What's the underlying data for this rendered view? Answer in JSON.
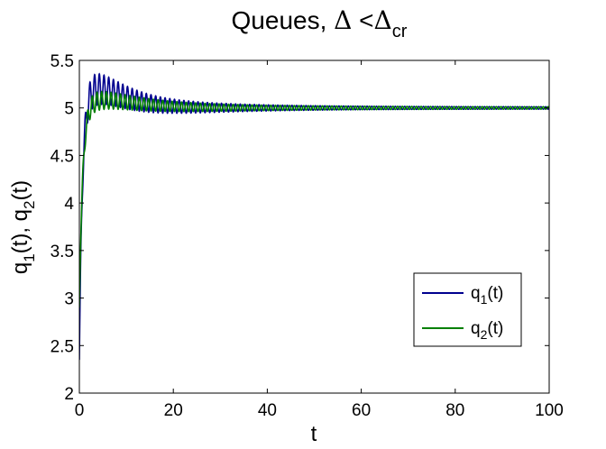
{
  "chart_data": {
    "type": "line",
    "title": {
      "main": "Queues, ",
      "delta": "Δ",
      "lt": " <",
      "delta2": "Δ",
      "sub": "cr"
    },
    "xlabel": "t",
    "ylabel": {
      "q": "q",
      "sub1": "1",
      "mid": "(t), q",
      "sub2": "2",
      "end": "(t)"
    },
    "xlim": [
      0,
      100
    ],
    "ylim": [
      2,
      5.5
    ],
    "xticks": [
      0,
      20,
      40,
      60,
      80,
      100
    ],
    "yticks": [
      2,
      2.5,
      3,
      3.5,
      4,
      4.5,
      5,
      5.5
    ],
    "xtick_labels": [
      "0",
      "20",
      "40",
      "60",
      "80",
      "100"
    ],
    "ytick_labels": [
      "2",
      "2.5",
      "3",
      "3.5",
      "4",
      "4.5",
      "5",
      "5.5"
    ],
    "grid": false,
    "legend_position": "bottom-right",
    "series": [
      {
        "name": {
          "q": "q",
          "sub": "1",
          "end": "(t)"
        },
        "color": "#00008f",
        "start": 2.35,
        "rise_tau": 0.6,
        "overshoot": 0.2,
        "peak_t": 4,
        "final": 5.0,
        "osc_period": 1.0,
        "osc_amplitude_peak": 0.16,
        "osc_decay_tau": 18
      },
      {
        "name": {
          "q": "q",
          "sub": "2",
          "end": "(t)"
        },
        "color": "#007f00",
        "start": 2.9,
        "rise_tau": 0.7,
        "overshoot": 0.08,
        "peak_t": 5,
        "final": 5.0,
        "osc_period": 1.0,
        "osc_amplitude_peak": 0.09,
        "osc_decay_tau": 22
      }
    ]
  }
}
